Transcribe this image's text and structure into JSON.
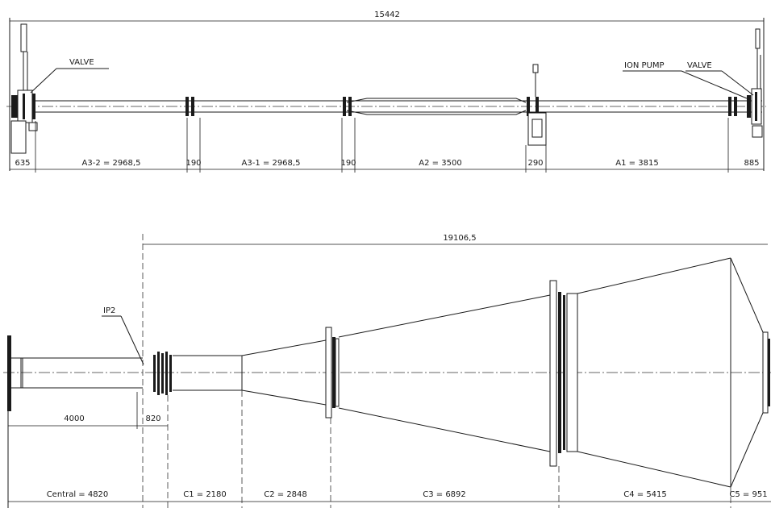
{
  "top": {
    "overall": "15442",
    "labels": {
      "valve_left": "VALVE",
      "ion_pump": "ION PUMP",
      "valve_right": "VALVE"
    },
    "dims": [
      "635",
      "A3-2 = 2968,5",
      "190",
      "A3-1 = 2968,5",
      "190",
      "A2 = 3500",
      "290",
      "A1 = 3815",
      "885"
    ]
  },
  "bottom": {
    "overall": "19106,5",
    "labels": {
      "ip2": "IP2"
    },
    "inner_dims": [
      "4000",
      "820"
    ],
    "dims": [
      "Central = 4820",
      "C1 = 2180",
      "C2 = 2848",
      "C3 = 6892",
      "C4 = 5415",
      "C5 = 951"
    ]
  }
}
